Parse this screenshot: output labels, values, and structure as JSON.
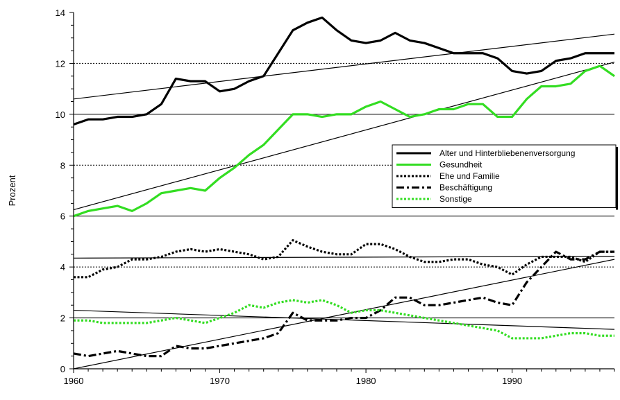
{
  "chart_data": {
    "type": "line",
    "title": "",
    "xlabel": "",
    "ylabel": "Prozent",
    "xlim": [
      1960,
      1997
    ],
    "ylim": [
      0,
      14
    ],
    "x_ticks": [
      1960,
      1970,
      1980,
      1990
    ],
    "y_ticks": [
      0,
      2,
      4,
      6,
      8,
      10,
      12,
      14
    ],
    "grid": "horizontal dotted at 4, 8, 12; solid at 2, 6, 10",
    "legend_position": "right",
    "years": [
      1960,
      1961,
      1962,
      1963,
      1964,
      1965,
      1966,
      1967,
      1968,
      1969,
      1970,
      1971,
      1972,
      1973,
      1974,
      1975,
      1976,
      1977,
      1978,
      1979,
      1980,
      1981,
      1982,
      1983,
      1984,
      1985,
      1986,
      1987,
      1988,
      1989,
      1990,
      1991,
      1992,
      1993,
      1994,
      1995,
      1996,
      1997
    ],
    "series": [
      {
        "name": "Alter und Hinterbliebenenversorgung",
        "color": "#000000",
        "style": "solid",
        "values": [
          9.6,
          9.8,
          9.8,
          9.9,
          9.9,
          10.0,
          10.4,
          11.4,
          11.3,
          11.3,
          10.9,
          11.0,
          11.3,
          11.5,
          12.4,
          13.3,
          13.6,
          13.8,
          13.3,
          12.9,
          12.8,
          12.9,
          13.2,
          12.9,
          12.8,
          12.6,
          12.4,
          12.4,
          12.4,
          12.2,
          11.7,
          11.6,
          11.7,
          12.1,
          12.2,
          12.4,
          12.4,
          12.4
        ]
      },
      {
        "name": "Gesundheit",
        "color": "#33dd22",
        "style": "solid",
        "values": [
          6.0,
          6.2,
          6.3,
          6.4,
          6.2,
          6.5,
          6.9,
          7.0,
          7.1,
          7.0,
          7.5,
          7.9,
          8.4,
          8.8,
          9.4,
          10.0,
          10.0,
          9.9,
          10.0,
          10.0,
          10.3,
          10.5,
          10.2,
          9.9,
          10.0,
          10.2,
          10.2,
          10.4,
          10.4,
          9.9,
          9.9,
          10.6,
          11.1,
          11.1,
          11.2,
          11.7,
          11.9,
          11.5
        ]
      },
      {
        "name": "Ehe und Familie",
        "color": "#000000",
        "style": "dotted",
        "values": [
          3.6,
          3.6,
          3.9,
          4.0,
          4.3,
          4.3,
          4.4,
          4.6,
          4.7,
          4.6,
          4.7,
          4.6,
          4.5,
          4.3,
          4.4,
          5.05,
          4.8,
          4.6,
          4.5,
          4.5,
          4.9,
          4.9,
          4.7,
          4.4,
          4.2,
          4.2,
          4.3,
          4.3,
          4.1,
          4.0,
          3.7,
          4.1,
          4.4,
          4.4,
          4.4,
          4.2,
          4.6,
          4.6
        ]
      },
      {
        "name": "Beschäftigung",
        "color": "#000000",
        "style": "dashdot",
        "values": [
          0.6,
          0.5,
          0.6,
          0.7,
          0.6,
          0.5,
          0.5,
          0.9,
          0.8,
          0.8,
          0.9,
          1.0,
          1.1,
          1.2,
          1.4,
          2.2,
          1.9,
          1.9,
          1.9,
          2.0,
          2.0,
          2.3,
          2.8,
          2.8,
          2.5,
          2.5,
          2.6,
          2.7,
          2.8,
          2.6,
          2.5,
          3.4,
          4.0,
          4.6,
          4.3,
          4.3,
          4.6,
          4.6
        ]
      },
      {
        "name": "Sonstige",
        "color": "#33dd22",
        "style": "dotted",
        "values": [
          1.9,
          1.9,
          1.8,
          1.8,
          1.8,
          1.8,
          1.9,
          2.0,
          1.9,
          1.8,
          2.0,
          2.2,
          2.5,
          2.4,
          2.6,
          2.7,
          2.6,
          2.7,
          2.5,
          2.2,
          2.3,
          2.3,
          2.2,
          2.1,
          2.0,
          1.9,
          1.8,
          1.7,
          1.6,
          1.5,
          1.2,
          1.2,
          1.2,
          1.3,
          1.4,
          1.4,
          1.3,
          1.3
        ]
      }
    ],
    "trendlines": [
      {
        "for": "Alter und Hinterbliebenenversorgung",
        "start": [
          1960,
          10.6
        ],
        "end": [
          1997,
          13.15
        ]
      },
      {
        "for": "Gesundheit",
        "start": [
          1960,
          6.25
        ],
        "end": [
          1997,
          12.05
        ]
      },
      {
        "for": "Ehe und Familie",
        "start": [
          1960,
          4.35
        ],
        "end": [
          1997,
          4.42
        ]
      },
      {
        "for": "Beschäftigung",
        "start": [
          1960,
          0.0
        ],
        "end": [
          1997,
          4.3
        ]
      },
      {
        "for": "Sonstige",
        "start": [
          1960,
          2.3
        ],
        "end": [
          1997,
          1.55
        ]
      }
    ]
  }
}
